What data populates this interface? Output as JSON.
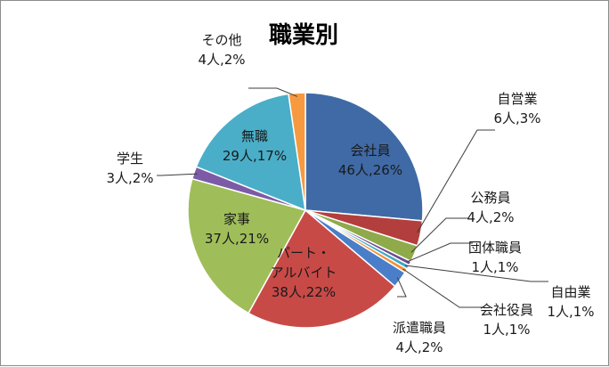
{
  "chart_data": {
    "type": "pie",
    "title": "職業別",
    "slices": [
      {
        "name": "会社員",
        "value_text": "46人,26%",
        "count": 46,
        "percent": 26,
        "color": "#3f6aa6"
      },
      {
        "name": "自営業",
        "value_text": "6人,3%",
        "count": 6,
        "percent": 3,
        "color": "#b23f3d"
      },
      {
        "name": "公務員",
        "value_text": "4人,2%",
        "count": 4,
        "percent": 2,
        "color": "#8eaa4b"
      },
      {
        "name": "団体職員",
        "value_text": "1人,1%",
        "count": 1,
        "percent": 1,
        "color": "#6d4c8f"
      },
      {
        "name": "自由業",
        "value_text": "1人,1%",
        "count": 1,
        "percent": 1,
        "color": "#3aa8c4"
      },
      {
        "name": "会社役員",
        "value_text": "1人,1%",
        "count": 1,
        "percent": 1,
        "color": "#f0913a"
      },
      {
        "name": "派遣職員",
        "value_text": "4人,2%",
        "count": 4,
        "percent": 2,
        "color": "#4a7ec8"
      },
      {
        "name": "パート・\nアルバイト",
        "value_text": "38人,22%",
        "count": 38,
        "percent": 22,
        "color": "#c84a47"
      },
      {
        "name": "家事",
        "value_text": "37人,21%",
        "count": 37,
        "percent": 21,
        "color": "#9fbe59"
      },
      {
        "name": "学生",
        "value_text": "3人,2%",
        "count": 3,
        "percent": 2,
        "color": "#7c5ba6"
      },
      {
        "name": "無職",
        "value_text": "29人,17%",
        "count": 29,
        "percent": 17,
        "color": "#4aaec8"
      },
      {
        "name": "その他",
        "value_text": "4人,2%",
        "count": 4,
        "percent": 2,
        "color": "#f6993f"
      }
    ]
  }
}
